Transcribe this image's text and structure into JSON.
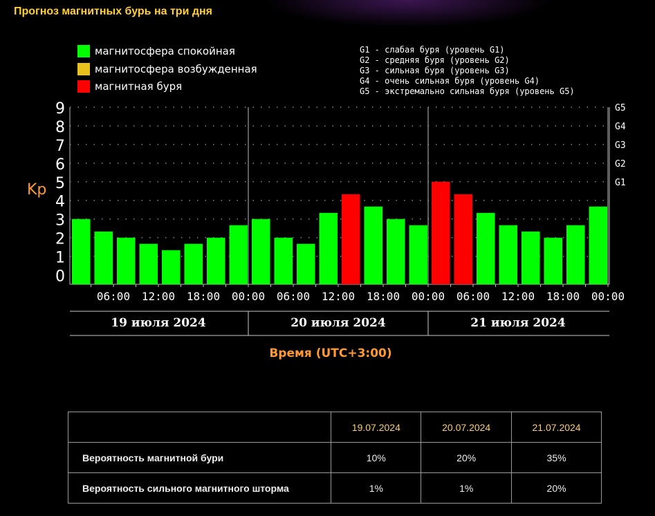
{
  "page_title": "Прогноз магнитных бурь на три дня",
  "legend": [
    {
      "label": "магнитосфера спокойная",
      "color": "#00ff00"
    },
    {
      "label": "магнитосфера возбужденная",
      "color": "#e8c21a"
    },
    {
      "label": "магнитная буря",
      "color": "#ff0000"
    }
  ],
  "g_levels": [
    "G1 - слабая буря (уровень G1)",
    "G2 - средняя буря (уровень G2)",
    "G3 - сильная буря (уровень G3)",
    "G4 - очень сильная буря (уровень G4)",
    "G5 - экстремально сильная буря (уровень G5)"
  ],
  "chart_data": {
    "type": "bar",
    "title": "Прогноз магнитных бурь на три дня",
    "ylabel": "Kp",
    "xlabel": "Время (UTC+3:00)",
    "ylim": [
      0,
      9
    ],
    "y_ticks": [
      "0",
      "1",
      "2",
      "3",
      "4",
      "5",
      "6",
      "7",
      "8",
      "9"
    ],
    "right_ticks": [
      {
        "label": "G1",
        "value": 5
      },
      {
        "label": "G2",
        "value": 6
      },
      {
        "label": "G3",
        "value": 7
      },
      {
        "label": "G4",
        "value": 8
      },
      {
        "label": "G5",
        "value": 9
      }
    ],
    "x_tick_labels": [
      "06:00",
      "12:00",
      "18:00",
      "00:00",
      "06:00",
      "12:00",
      "18:00",
      "00:00",
      "06:00",
      "12:00",
      "18:00",
      "00:00"
    ],
    "days": [
      "19 июля 2024",
      "20 июля 2024",
      "21 июля 2024"
    ],
    "values": [
      3.0,
      2.33,
      2.0,
      1.67,
      1.33,
      1.67,
      2.0,
      2.67,
      3.0,
      2.0,
      1.67,
      3.33,
      4.33,
      3.67,
      3.0,
      2.67,
      5.0,
      4.33,
      3.33,
      2.67,
      2.33,
      2.0,
      2.67,
      3.67
    ],
    "levels": [
      "quiet",
      "quiet",
      "quiet",
      "quiet",
      "quiet",
      "quiet",
      "quiet",
      "quiet",
      "quiet",
      "quiet",
      "quiet",
      "quiet",
      "storm",
      "quiet",
      "quiet",
      "quiet",
      "storm",
      "storm",
      "quiet",
      "quiet",
      "quiet",
      "quiet",
      "quiet",
      "quiet"
    ],
    "level_colors": {
      "quiet": "#00ff00",
      "active": "#e8c21a",
      "storm": "#ff0000"
    },
    "grid": true
  },
  "table": {
    "headers": [
      "",
      "19.07.2024",
      "20.07.2024",
      "21.07.2024"
    ],
    "rows": [
      {
        "label": "Вероятность магнитной бури",
        "values": [
          "10%",
          "20%",
          "35%"
        ]
      },
      {
        "label": "Вероятность сильного магнитного шторма",
        "values": [
          "1%",
          "1%",
          "20%"
        ]
      }
    ]
  }
}
